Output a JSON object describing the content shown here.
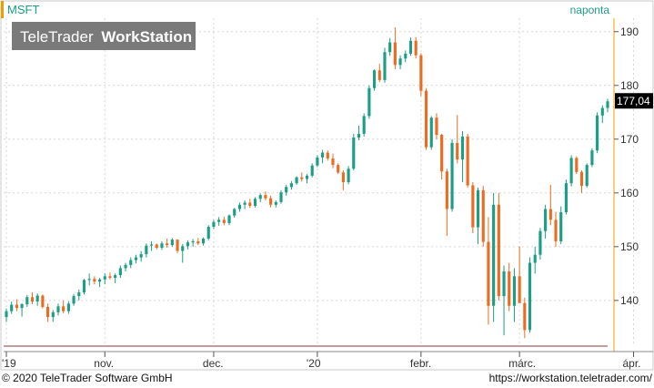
{
  "chart_data": {
    "type": "candlestick",
    "symbol": "MSFT",
    "period_label": "naponta",
    "last_price_label": "177,04",
    "watermark_brand": "TeleTrader",
    "watermark_product": "WorkStation",
    "ylim": [
      131.5,
      192.5
    ],
    "y_ticks": [
      140,
      150,
      160,
      170,
      180,
      190
    ],
    "x_ticks": [
      {
        "label": "'19",
        "index": 0
      },
      {
        "label": "nov.",
        "index": 19
      },
      {
        "label": "dec.",
        "index": 40
      },
      {
        "label": "'20",
        "index": 60
      },
      {
        "label": "febr.",
        "index": 80
      },
      {
        "label": "márc.",
        "index": 99
      },
      {
        "label": "ápr.",
        "index": 121
      }
    ],
    "colors": {
      "up": "#1a9e86",
      "down": "#ee6a1f",
      "accent_text": "#1a9e86",
      "axis": "#e8a000",
      "grid": "#d6d6d6"
    },
    "candles": [
      [
        136.9,
        138.5,
        136.0,
        138.0
      ],
      [
        138.0,
        139.8,
        137.5,
        139.2
      ],
      [
        139.2,
        140.2,
        138.0,
        138.6
      ],
      [
        138.6,
        139.5,
        137.0,
        139.3
      ],
      [
        139.3,
        141.0,
        138.8,
        140.6
      ],
      [
        140.6,
        141.5,
        139.3,
        139.8
      ],
      [
        139.8,
        141.3,
        139.0,
        140.9
      ],
      [
        140.9,
        141.1,
        138.5,
        138.8
      ],
      [
        138.8,
        139.4,
        136.0,
        136.9
      ],
      [
        136.9,
        138.2,
        136.0,
        137.8
      ],
      [
        137.8,
        139.4,
        137.2,
        138.9
      ],
      [
        138.9,
        140.0,
        137.6,
        138.0
      ],
      [
        138.0,
        139.8,
        137.5,
        139.4
      ],
      [
        139.4,
        141.2,
        139.0,
        140.8
      ],
      [
        140.8,
        142.0,
        140.0,
        141.5
      ],
      [
        141.5,
        144.0,
        141.1,
        143.8
      ],
      [
        143.8,
        145.0,
        142.8,
        144.0
      ],
      [
        144.0,
        144.5,
        143.0,
        143.5
      ],
      [
        143.5,
        144.2,
        142.5,
        143.9
      ],
      [
        143.9,
        145.0,
        143.0,
        144.5
      ],
      [
        144.5,
        145.2,
        143.9,
        144.2
      ],
      [
        144.2,
        145.0,
        143.2,
        144.7
      ],
      [
        144.7,
        146.5,
        144.2,
        146.0
      ],
      [
        146.0,
        147.0,
        145.4,
        146.6
      ],
      [
        146.6,
        148.0,
        146.0,
        147.5
      ],
      [
        147.5,
        148.5,
        146.9,
        148.0
      ],
      [
        148.0,
        149.2,
        147.2,
        148.6
      ],
      [
        148.6,
        150.6,
        148.0,
        150.2
      ],
      [
        150.2,
        151.0,
        149.2,
        150.4
      ],
      [
        150.4,
        150.6,
        149.5,
        149.8
      ],
      [
        149.8,
        151.0,
        149.4,
        150.6
      ],
      [
        150.6,
        151.5,
        149.8,
        150.3
      ],
      [
        150.3,
        151.6,
        150.0,
        151.3
      ],
      [
        151.3,
        151.4,
        148.8,
        149.2
      ],
      [
        149.2,
        150.5,
        147.0,
        150.1
      ],
      [
        150.1,
        151.2,
        149.5,
        150.8
      ],
      [
        150.8,
        151.4,
        150.0,
        151.0
      ],
      [
        151.0,
        151.6,
        150.3,
        150.6
      ],
      [
        150.6,
        151.7,
        150.2,
        151.5
      ],
      [
        151.5,
        154.0,
        151.2,
        153.7
      ],
      [
        153.7,
        155.0,
        153.3,
        154.6
      ],
      [
        154.6,
        155.5,
        153.9,
        155.0
      ],
      [
        155.0,
        155.6,
        154.0,
        154.4
      ],
      [
        154.4,
        156.0,
        154.0,
        155.8
      ],
      [
        155.8,
        157.2,
        155.4,
        157.0
      ],
      [
        157.0,
        158.2,
        156.5,
        157.8
      ],
      [
        157.8,
        158.6,
        157.0,
        158.2
      ],
      [
        158.2,
        158.9,
        157.2,
        157.6
      ],
      [
        157.6,
        159.2,
        157.3,
        158.9
      ],
      [
        158.9,
        159.9,
        158.3,
        159.6
      ],
      [
        159.6,
        160.3,
        158.6,
        159.0
      ],
      [
        159.0,
        159.5,
        157.3,
        157.8
      ],
      [
        157.8,
        158.6,
        157.3,
        158.3
      ],
      [
        158.3,
        160.5,
        158.0,
        160.1
      ],
      [
        160.1,
        161.5,
        159.5,
        161.1
      ],
      [
        161.1,
        162.2,
        160.6,
        161.8
      ],
      [
        161.8,
        163.1,
        161.5,
        162.9
      ],
      [
        162.9,
        163.8,
        162.1,
        162.6
      ],
      [
        162.6,
        163.5,
        161.8,
        163.2
      ],
      [
        163.2,
        165.5,
        162.9,
        165.1
      ],
      [
        165.1,
        167.0,
        164.8,
        166.6
      ],
      [
        166.6,
        168.0,
        165.5,
        167.5
      ],
      [
        167.5,
        167.9,
        166.0,
        166.4
      ],
      [
        166.4,
        167.3,
        164.6,
        165.2
      ],
      [
        165.2,
        165.5,
        163.5,
        163.8
      ],
      [
        163.8,
        164.2,
        160.5,
        162.0
      ],
      [
        162.0,
        165.0,
        161.6,
        164.5
      ],
      [
        164.5,
        171.0,
        164.2,
        170.3
      ],
      [
        170.3,
        172.5,
        169.8,
        171.0
      ],
      [
        171.0,
        174.8,
        170.5,
        174.3
      ],
      [
        174.3,
        180.0,
        173.8,
        179.5
      ],
      [
        179.5,
        183.0,
        179.0,
        182.8
      ],
      [
        182.8,
        184.0,
        180.6,
        181.0
      ],
      [
        181.0,
        187.0,
        180.5,
        186.2
      ],
      [
        186.2,
        188.8,
        185.5,
        188.0
      ],
      [
        188.0,
        190.8,
        183.0,
        183.8
      ],
      [
        183.8,
        185.6,
        183.0,
        185.0
      ],
      [
        185.0,
        186.5,
        184.3,
        185.9
      ],
      [
        185.9,
        188.9,
        185.5,
        188.3
      ],
      [
        188.3,
        189.0,
        185.0,
        185.6
      ],
      [
        185.6,
        186.0,
        178.0,
        179.0
      ],
      [
        179.0,
        179.5,
        168.0,
        168.5
      ],
      [
        168.5,
        174.3,
        168.0,
        174.0
      ],
      [
        174.0,
        174.8,
        170.0,
        170.8
      ],
      [
        170.8,
        171.0,
        162.5,
        164.0
      ],
      [
        164.0,
        164.5,
        152.0,
        157.0
      ],
      [
        157.0,
        170.0,
        156.5,
        169.3
      ],
      [
        169.3,
        174.5,
        165.5,
        166.2
      ],
      [
        166.2,
        171.5,
        162.0,
        170.5
      ],
      [
        170.5,
        171.0,
        161.0,
        161.4
      ],
      [
        161.4,
        162.0,
        152.5,
        153.6
      ],
      [
        153.6,
        161.0,
        150.5,
        160.5
      ],
      [
        160.5,
        161.3,
        150.0,
        150.9
      ],
      [
        150.9,
        155.5,
        135.5,
        139.0
      ],
      [
        139.0,
        160.0,
        136.0,
        157.8
      ],
      [
        157.8,
        160.0,
        140.0,
        140.8
      ],
      [
        140.8,
        146.5,
        133.5,
        145.4
      ],
      [
        145.4,
        147.0,
        138.0,
        139.0
      ],
      [
        139.0,
        146.0,
        136.0,
        144.5
      ],
      [
        144.5,
        150.0,
        140.0,
        139.5
      ],
      [
        139.5,
        140.5,
        133.0,
        134.5
      ],
      [
        134.5,
        148.0,
        134.0,
        147.0
      ],
      [
        147.0,
        150.0,
        145.0,
        148.5
      ],
      [
        148.5,
        153.5,
        147.6,
        152.9
      ],
      [
        152.9,
        157.8,
        151.5,
        157.0
      ],
      [
        157.0,
        161.5,
        154.0,
        155.0
      ],
      [
        155.0,
        156.5,
        150.0,
        151.0
      ],
      [
        151.0,
        157.5,
        150.5,
        156.4
      ],
      [
        156.4,
        162.5,
        156.0,
        161.8
      ],
      [
        161.8,
        167.0,
        161.2,
        166.5
      ],
      [
        166.5,
        166.8,
        163.5,
        163.9
      ],
      [
        163.9,
        164.2,
        160.0,
        161.3
      ],
      [
        161.3,
        165.5,
        161.0,
        165.2
      ],
      [
        165.2,
        168.3,
        164.8,
        167.9
      ],
      [
        167.9,
        175.0,
        167.4,
        174.4
      ],
      [
        174.4,
        176.3,
        173.0,
        175.8
      ],
      [
        175.8,
        177.5,
        175.0,
        177.04
      ]
    ]
  },
  "footer": {
    "copyright": "© 2020 TeleTrader Software GmbH",
    "url": "https://workstation.teletrader.com/"
  }
}
